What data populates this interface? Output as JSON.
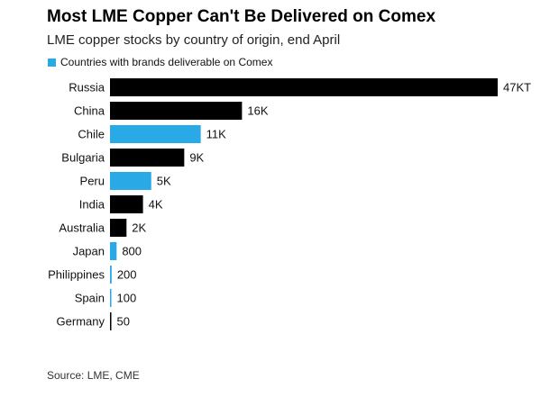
{
  "title": "Most LME Copper Can't Be Delivered on Comex",
  "subtitle": "LME copper stocks by country of origin, end April",
  "legend": {
    "label": "Countries with brands deliverable on Comex"
  },
  "source": "Source: LME, CME",
  "colors": {
    "deliverable": "#29a9e6",
    "other": "#000000"
  },
  "chart_data": {
    "type": "bar",
    "orientation": "horizontal",
    "xlim": [
      0,
      47000
    ],
    "categories": [
      "Russia",
      "China",
      "Chile",
      "Bulgaria",
      "Peru",
      "India",
      "Australia",
      "Japan",
      "Philippines",
      "Spain",
      "Germany"
    ],
    "values": [
      47000,
      16000,
      11000,
      9000,
      5000,
      4000,
      2000,
      800,
      200,
      100,
      50
    ],
    "data_labels": [
      "47KT",
      "16K",
      "11K",
      "9K",
      "5K",
      "4K",
      "2K",
      "800",
      "200",
      "100",
      "50"
    ],
    "deliverable_on_comex": [
      false,
      false,
      true,
      false,
      true,
      false,
      false,
      true,
      true,
      true,
      false
    ]
  }
}
